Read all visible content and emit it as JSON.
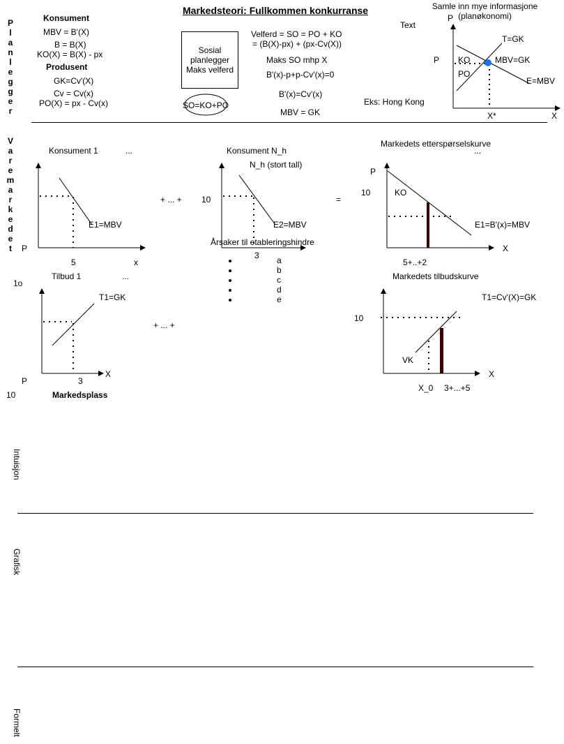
{
  "title": "Markedsteori: Fullkommen konkurranse",
  "side_labels": {
    "planlegger": "Planlegger",
    "varemarkedet": "Varemarkedet"
  },
  "row_labels": {
    "intuisjon": "Intuisjon",
    "grafisk": "Grafisk",
    "formelt": "Formelt"
  },
  "planlegger_section": {
    "konsument_heading": "Konsument",
    "konsument_lines": [
      "MBV = B'(X)",
      "B = B(X)",
      "KO(X) = B(X) - px"
    ],
    "produsent_heading": "Produsent",
    "produsent_lines": [
      "GK=Cv'(X)",
      "Cv = Cv(x)",
      "PO(X) = px - Cv(x)"
    ],
    "box_lines": [
      "Sosial",
      "planlegger",
      "Maks velferd"
    ],
    "ellipse_label": "SO=KO+PO",
    "formula_lines": [
      "Velferd = SO  = PO + KO",
      "= (B(X)-px) + (px-Cv(X))",
      "Maks SO mhp X",
      "B'(x)-p+p-Cv'(x)=0",
      "B'(x)=Cv'(x)",
      "MBV = GK"
    ],
    "text_label": "Text",
    "example": "Eks: Hong Kong",
    "info_lines": [
      "Samle inn mye informasjone",
      "(planøkonomi)"
    ],
    "graph": {
      "p_top": "P",
      "p_left": "P",
      "tgk": "T=GK",
      "ko": "KO",
      "mbvgk": "MBV=GK",
      "po": "PO",
      "embv": "E=MBV",
      "xstar": "X*",
      "x": "X"
    }
  },
  "varemarked_section": {
    "konsument1": "Konsument 1",
    "ellipsis1": "...",
    "e1mbv": "E1=MBV",
    "p1": "P",
    "five": "5",
    "x1": "x",
    "plus_dots": "+ ... +",
    "konsumentnh": "Konsument N_h",
    "nh_note": "N_h (stort tall)",
    "ten_mid": "10",
    "e2mbv": "E2=MBV",
    "three_mid": "3",
    "arsaker": "Årsaker til etableringshindre",
    "bullets": [
      "a",
      "b",
      "c",
      "d",
      "e"
    ],
    "equals": "=",
    "eterspors": "Markedets etterspørselskurve",
    "ellipsis2": "...",
    "p_right": "P",
    "ten_right": "10",
    "ko_right": "KO",
    "e1bx": "E1=B'(x)=MBV",
    "x_right": "X",
    "sum": "5+..+2",
    "tilbud1": "Tilbud 1",
    "ellipsis3": "...",
    "ten_small": "1o",
    "t1gk": "T1=GK",
    "plus_dots2": "+ ... +",
    "p_bl": "P",
    "three_bl": "3",
    "x_bl": "X",
    "ten_bl": "10",
    "markedsplass": "Markedsplass",
    "tilbudskurve": "Markedets tilbudskurve",
    "t1cv": "T1=Cv'(X)=GK",
    "ten_br": "10",
    "vk": "VK",
    "x_br": "X",
    "x0": "X_0",
    "sum2": "3+...+5"
  }
}
